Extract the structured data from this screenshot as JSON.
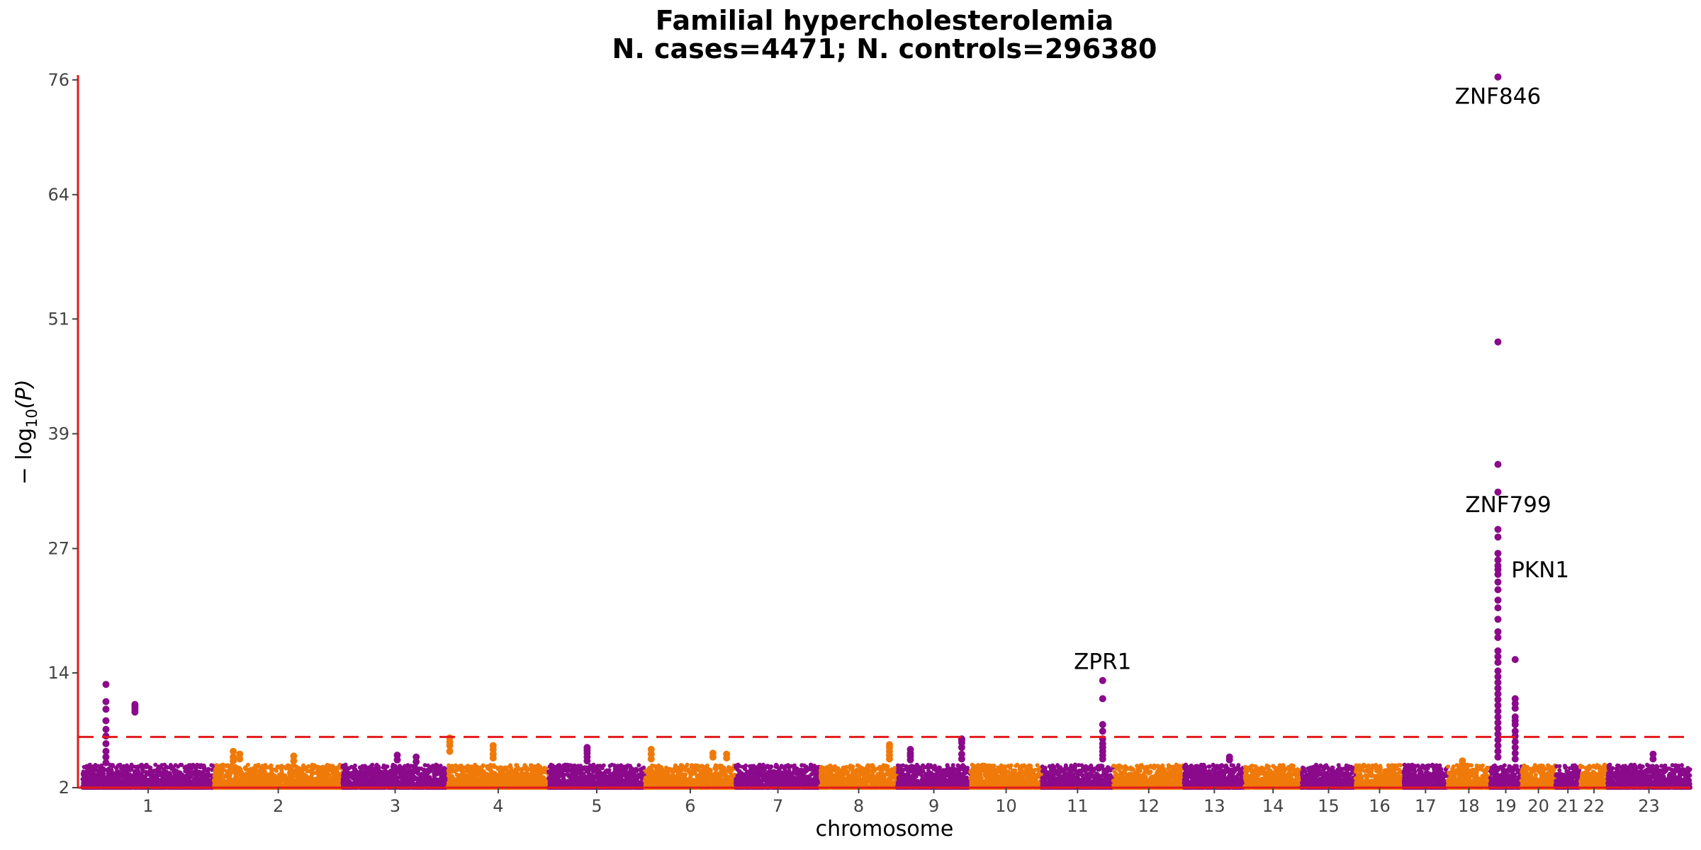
{
  "chart_data": {
    "type": "scatter",
    "subtype": "manhattan",
    "title_line1": "Familial hypercholesterolemia",
    "title_line2": "N. cases=4471; N. controls=296380",
    "xlabel": "chromosome",
    "ylabel_prefix": "− log",
    "ylabel_sub": "10",
    "ylabel_suffix": "(P)",
    "ylim": [
      2,
      76.5
    ],
    "yticks": [
      2,
      14,
      27,
      39,
      51,
      64,
      76
    ],
    "significance_threshold": 7.3,
    "grid": false,
    "colors": {
      "odd": "#8b0a8b",
      "even": "#ef7a0a",
      "axis": "#e31a1c",
      "threshold": "#e31a1c",
      "tick_text": "#444444"
    },
    "chromosomes": [
      {
        "label": "1",
        "length": 248
      },
      {
        "label": "2",
        "length": 242
      },
      {
        "label": "3",
        "length": 198
      },
      {
        "label": "4",
        "length": 190
      },
      {
        "label": "5",
        "length": 181
      },
      {
        "label": "6",
        "length": 171
      },
      {
        "label": "7",
        "length": 159
      },
      {
        "label": "8",
        "length": 145
      },
      {
        "label": "9",
        "length": 138
      },
      {
        "label": "10",
        "length": 134
      },
      {
        "label": "11",
        "length": 135
      },
      {
        "label": "12",
        "length": 133
      },
      {
        "label": "13",
        "length": 114
      },
      {
        "label": "14",
        "length": 107
      },
      {
        "label": "15",
        "length": 102
      },
      {
        "label": "16",
        "length": 90
      },
      {
        "label": "17",
        "length": 83
      },
      {
        "label": "18",
        "length": 80
      },
      {
        "label": "19",
        "length": 59
      },
      {
        "label": "20",
        "length": 64
      },
      {
        "label": "21",
        "length": 47
      },
      {
        "label": "22",
        "length": 51
      },
      {
        "label": "23",
        "length": 156
      }
    ],
    "peaks": [
      {
        "chr": "1",
        "pos": 0.18,
        "values": [
          12.8,
          11.0,
          10.2,
          9.0,
          8.1,
          7.4,
          6.6,
          5.8,
          5.2,
          4.6
        ]
      },
      {
        "chr": "1",
        "pos": 0.4,
        "values": [
          10.7,
          10.5,
          10.2,
          9.9
        ]
      },
      {
        "chr": "2",
        "pos": 0.15,
        "values": [
          5.8,
          5.2,
          4.8
        ]
      },
      {
        "chr": "2",
        "pos": 0.2,
        "values": [
          5.5,
          5.0
        ]
      },
      {
        "chr": "2",
        "pos": 0.62,
        "values": [
          5.3,
          4.8
        ]
      },
      {
        "chr": "3",
        "pos": 0.52,
        "values": [
          5.4,
          4.9
        ]
      },
      {
        "chr": "3",
        "pos": 0.7,
        "values": [
          5.2,
          4.7
        ]
      },
      {
        "chr": "4",
        "pos": 0.02,
        "values": [
          7.2,
          6.8,
          6.4,
          5.8
        ]
      },
      {
        "chr": "4",
        "pos": 0.45,
        "values": [
          6.4,
          6.0,
          5.5,
          5.1
        ]
      },
      {
        "chr": "5",
        "pos": 0.4,
        "values": [
          6.2,
          5.9,
          5.6,
          5.2,
          4.8
        ]
      },
      {
        "chr": "6",
        "pos": 0.07,
        "values": [
          6.0,
          5.5,
          5.0
        ]
      },
      {
        "chr": "6",
        "pos": 0.75,
        "values": [
          5.6,
          5.2
        ]
      },
      {
        "chr": "6",
        "pos": 0.9,
        "values": [
          5.5,
          5.1
        ]
      },
      {
        "chr": "8",
        "pos": 0.9,
        "values": [
          6.5,
          6.2,
          5.8,
          5.4,
          5.0
        ]
      },
      {
        "chr": "9",
        "pos": 0.18,
        "values": [
          6.0,
          5.6,
          5.3,
          4.9
        ]
      },
      {
        "chr": "9",
        "pos": 0.88,
        "values": [
          7.1,
          7.0,
          6.7,
          6.2,
          5.5,
          5.0
        ]
      },
      {
        "chr": "11",
        "pos": 0.85,
        "values": [
          13.2,
          11.3,
          8.6,
          7.9,
          7.1,
          6.6,
          6.2,
          5.8,
          5.4,
          5.0
        ]
      },
      {
        "chr": "13",
        "pos": 0.75,
        "values": [
          5.2,
          4.9
        ]
      },
      {
        "chr": "18",
        "pos": 0.35,
        "values": [
          4.8,
          4.5
        ]
      },
      {
        "chr": "19",
        "pos": 0.25,
        "values": [
          76.3,
          48.6,
          35.8,
          32.9,
          29.0,
          28.2,
          26.5,
          25.8,
          25.2,
          24.8,
          24.3,
          23.5,
          22.7,
          21.6,
          20.8,
          19.6,
          18.3,
          17.7,
          16.3,
          15.7,
          15.1,
          14.2,
          13.6,
          13.0,
          12.4,
          11.8,
          11.2,
          10.6,
          10.0,
          9.4,
          8.8,
          8.2,
          7.6,
          7.0,
          6.4,
          5.8,
          5.2
        ]
      },
      {
        "chr": "19",
        "pos": 0.8,
        "values": [
          15.4,
          11.3,
          10.8,
          10.3,
          9.4,
          9.0,
          8.6,
          7.9,
          7.4,
          6.8,
          6.2,
          5.6,
          5.0
        ]
      },
      {
        "chr": "23",
        "pos": 0.55,
        "values": [
          5.5,
          5.0
        ]
      }
    ],
    "annotations": [
      {
        "text": "ZNF846",
        "chr": "19",
        "pos": 0.25,
        "y": 73.5
      },
      {
        "text": "ZNF799",
        "chr": "19",
        "pos": 0.58,
        "y": 30.8
      },
      {
        "text": "PKN1",
        "chr": "19",
        "pos": 1.6,
        "y": 24.0
      },
      {
        "text": "ZPR1",
        "chr": "11",
        "pos": 0.85,
        "y": 14.4
      }
    ]
  }
}
